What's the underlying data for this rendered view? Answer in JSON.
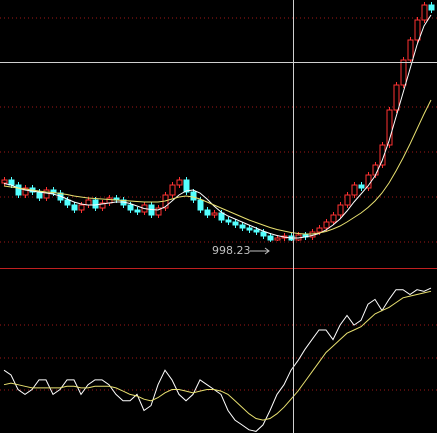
{
  "chart_data": [
    {
      "type": "candlestick",
      "ylim": [
        946,
        1482
      ],
      "up_color": "#ff3232",
      "down_color": "#54ffff",
      "open": [
        1116,
        1122,
        1112,
        1092,
        1106,
        1098,
        1086,
        1102,
        1096,
        1082,
        1072,
        1062,
        1072,
        1082,
        1066,
        1076,
        1086,
        1082,
        1072,
        1062,
        1058,
        1072,
        1052,
        1066,
        1092,
        1112,
        1122,
        1098,
        1082,
        1062,
        1052,
        1056,
        1042,
        1038,
        1032,
        1026,
        1022,
        1018,
        1010,
        1002,
        1006,
        1010,
        1002,
        1012,
        1008,
        1018,
        1026,
        1038,
        1052,
        1072,
        1092,
        1112,
        1106,
        1132,
        1152,
        1192,
        1262,
        1312,
        1362,
        1402,
        1442,
        1472
      ],
      "high": [
        1128,
        1128,
        1118,
        1112,
        1112,
        1104,
        1108,
        1108,
        1102,
        1088,
        1078,
        1078,
        1088,
        1088,
        1082,
        1092,
        1092,
        1088,
        1078,
        1068,
        1078,
        1078,
        1072,
        1098,
        1118,
        1128,
        1128,
        1104,
        1088,
        1068,
        1062,
        1062,
        1048,
        1044,
        1038,
        1032,
        1028,
        1024,
        1016,
        1012,
        1016,
        1016,
        1018,
        1018,
        1024,
        1032,
        1044,
        1058,
        1078,
        1098,
        1118,
        1118,
        1138,
        1158,
        1198,
        1268,
        1318,
        1368,
        1408,
        1448,
        1478,
        1478
      ],
      "low": [
        1110,
        1106,
        1086,
        1086,
        1092,
        1080,
        1080,
        1090,
        1076,
        1066,
        1056,
        1056,
        1066,
        1060,
        1060,
        1070,
        1076,
        1066,
        1056,
        1052,
        1052,
        1046,
        1046,
        1060,
        1086,
        1106,
        1092,
        1076,
        1056,
        1046,
        1046,
        1036,
        1032,
        1026,
        1020,
        1016,
        1012,
        1004,
        998.23,
        1000,
        1000,
        1000,
        1000,
        1002,
        1002,
        1012,
        1020,
        1032,
        1046,
        1066,
        1086,
        1100,
        1100,
        1126,
        1146,
        1186,
        1256,
        1306,
        1356,
        1396,
        1436,
        1456
      ],
      "close": [
        1122,
        1112,
        1092,
        1106,
        1098,
        1086,
        1102,
        1096,
        1082,
        1072,
        1062,
        1072,
        1082,
        1066,
        1076,
        1086,
        1082,
        1072,
        1062,
        1058,
        1072,
        1052,
        1066,
        1092,
        1112,
        1122,
        1098,
        1082,
        1062,
        1052,
        1056,
        1042,
        1038,
        1032,
        1026,
        1022,
        1018,
        1010,
        1002,
        1006,
        1010,
        1002,
        1012,
        1008,
        1018,
        1026,
        1038,
        1052,
        1072,
        1092,
        1112,
        1106,
        1132,
        1152,
        1192,
        1262,
        1312,
        1362,
        1402,
        1442,
        1472,
        1462
      ],
      "ma_lines": [
        {
          "color": "#ffffff",
          "values": [
            1115,
            1112,
            1106,
            1102,
            1100,
            1098,
            1096,
            1094,
            1090,
            1084,
            1078,
            1074,
            1072,
            1072,
            1074,
            1076,
            1078,
            1078,
            1075,
            1070,
            1065,
            1063,
            1062,
            1068,
            1080,
            1092,
            1100,
            1102,
            1096,
            1084,
            1070,
            1058,
            1050,
            1044,
            1038,
            1032,
            1026,
            1020,
            1015,
            1011,
            1008,
            1006,
            1006,
            1008,
            1011,
            1015,
            1022,
            1032,
            1044,
            1060,
            1078,
            1094,
            1110,
            1130,
            1160,
            1200,
            1248,
            1296,
            1344,
            1392,
            1430,
            1452
          ]
        },
        {
          "color": "#e8e070",
          "values": [
            1110,
            1108,
            1106,
            1104,
            1102,
            1100,
            1098,
            1097,
            1095,
            1093,
            1090,
            1088,
            1086,
            1085,
            1084,
            1083,
            1082,
            1081,
            1080,
            1079,
            1078,
            1078,
            1078,
            1080,
            1084,
            1088,
            1090,
            1088,
            1084,
            1078,
            1072,
            1066,
            1060,
            1054,
            1048,
            1042,
            1037,
            1032,
            1027,
            1023,
            1020,
            1017,
            1015,
            1014,
            1014,
            1016,
            1019,
            1024,
            1030,
            1038,
            1047,
            1056,
            1067,
            1080,
            1096,
            1116,
            1140,
            1166,
            1194,
            1224,
            1254,
            1282
          ]
        }
      ],
      "annotation": "998.23"
    },
    {
      "type": "line",
      "ylim": [
        0,
        100
      ],
      "series": [
        {
          "color": "#ffffff",
          "values": [
            39,
            36,
            27,
            24,
            27,
            33,
            33,
            24,
            27,
            33,
            33,
            24,
            30,
            33,
            33,
            30,
            24,
            20,
            20,
            24,
            14,
            17,
            30,
            39,
            33,
            24,
            20,
            24,
            33,
            30,
            27,
            24,
            14,
            8,
            5,
            2,
            1,
            5,
            14,
            24,
            30,
            39,
            45,
            52,
            58,
            64,
            64,
            58,
            67,
            73,
            67,
            70,
            80,
            83,
            76,
            83,
            89,
            89,
            86,
            89,
            88,
            90
          ]
        },
        {
          "color": "#e8e070",
          "values": [
            30,
            31,
            30,
            29,
            28,
            28,
            28,
            28,
            28,
            29,
            29,
            28,
            28,
            29,
            29,
            29,
            28,
            26,
            24,
            23,
            21,
            20,
            22,
            25,
            27,
            27,
            26,
            25,
            26,
            27,
            27,
            26,
            24,
            20,
            16,
            12,
            9,
            8,
            9,
            12,
            16,
            21,
            26,
            32,
            38,
            44,
            50,
            54,
            58,
            62,
            64,
            66,
            70,
            74,
            76,
            78,
            81,
            84,
            85,
            86,
            87,
            88
          ]
        }
      ]
    }
  ]
}
